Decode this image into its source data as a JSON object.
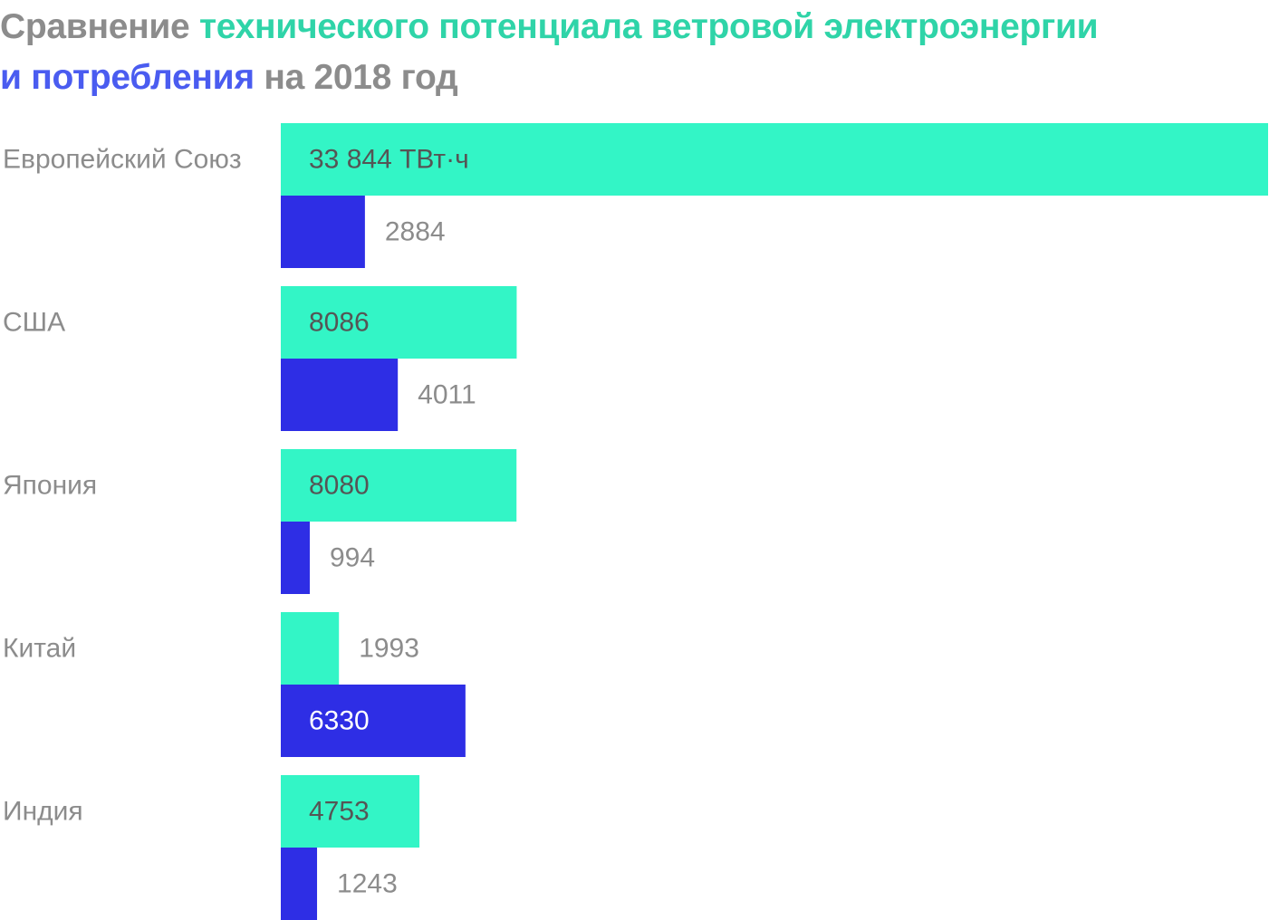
{
  "title": {
    "part1": "Сравнение ",
    "part2": "технического потенциала ветровой электроэнергии",
    "part3": "и потребления",
    "part4": " на 2018 год"
  },
  "colors": {
    "potential": "#33f5c6",
    "consumption": "#2e2ee5",
    "potential_title": "#2fd4a8",
    "consumption_title": "#4a5cf0",
    "label_gray": "#8c8c8c",
    "value_dark": "#555555",
    "value_light": "#ffffff"
  },
  "chart_data": {
    "type": "bar",
    "orientation": "horizontal",
    "categories": [
      "Европейский Союз",
      "США",
      "Япония",
      "Китай",
      "Индия"
    ],
    "series": [
      {
        "name": "технического потенциала ветровой электроэнергии",
        "values": [
          33844,
          8086,
          8080,
          1993,
          4753
        ],
        "labels": [
          "33 844 ТВт·ч",
          "8086",
          "8080",
          "1993",
          "4753"
        ]
      },
      {
        "name": "потребления",
        "values": [
          2884,
          4011,
          994,
          6330,
          1243
        ],
        "labels": [
          "2884",
          "4011",
          "994",
          "6330",
          "1243"
        ]
      }
    ],
    "unit": "ТВт·ч",
    "xlim": [
      0,
      33844
    ],
    "grid": false,
    "legend": "none"
  }
}
